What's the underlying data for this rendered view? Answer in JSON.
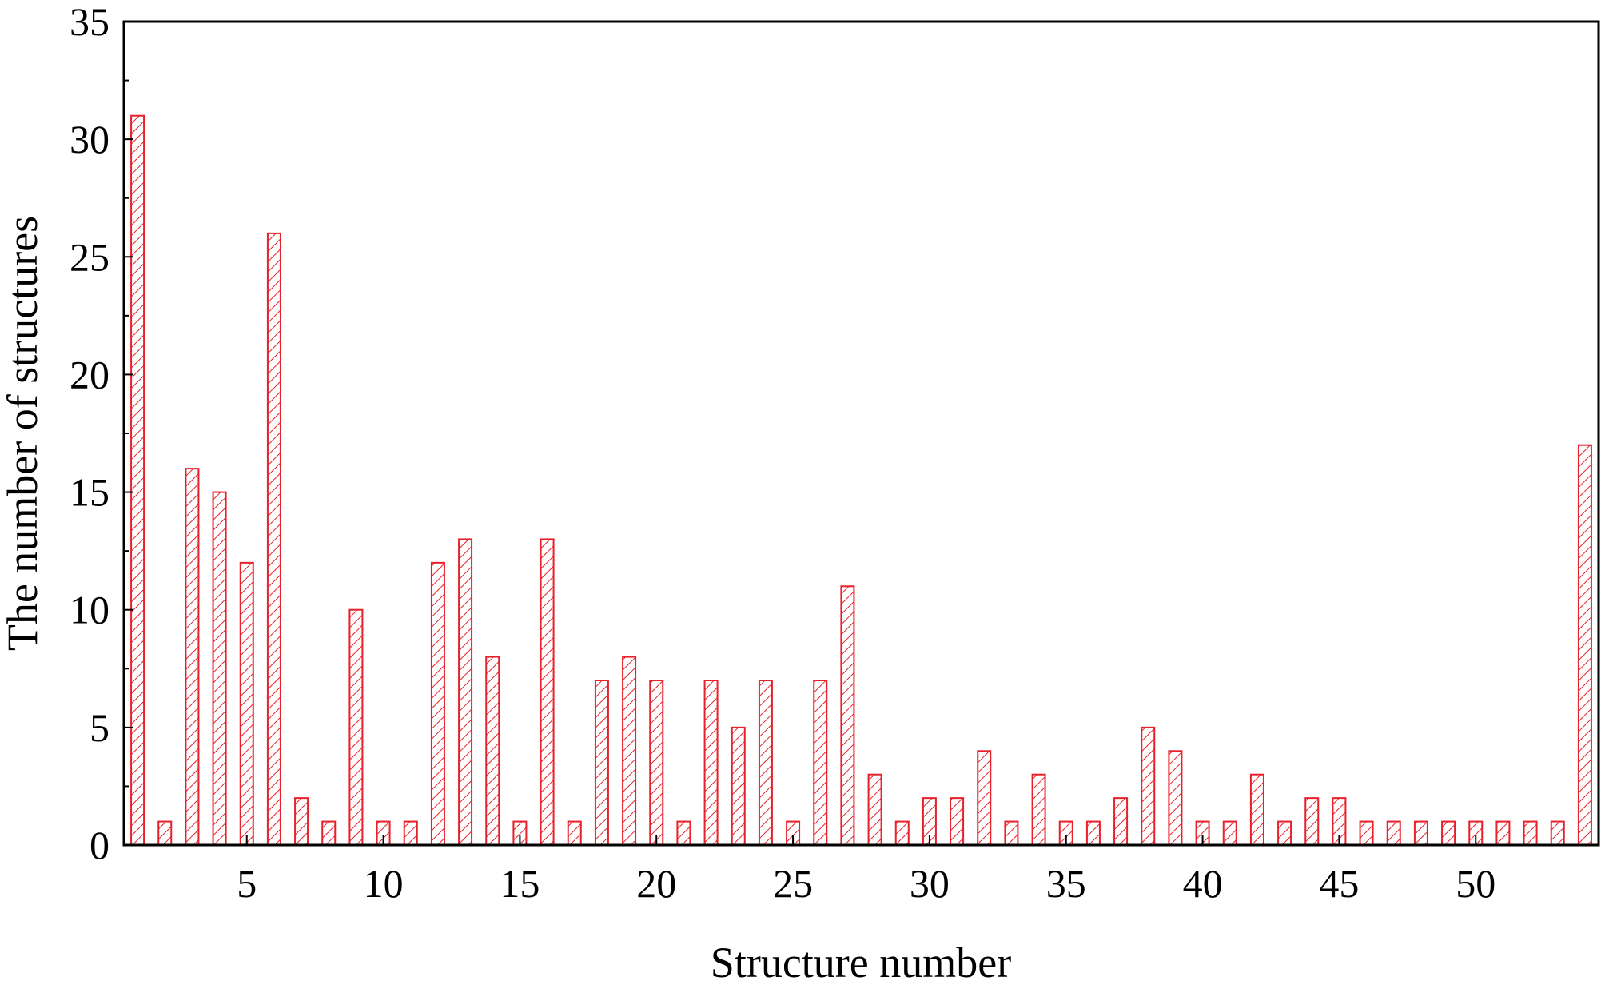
{
  "chart_data": {
    "type": "bar",
    "title": "",
    "xlabel": "Structure number",
    "ylabel": "The number of structures",
    "x": [
      1,
      2,
      3,
      4,
      5,
      6,
      7,
      8,
      9,
      10,
      11,
      12,
      13,
      14,
      15,
      16,
      17,
      18,
      19,
      20,
      21,
      22,
      23,
      24,
      25,
      26,
      27,
      28,
      29,
      30,
      31,
      32,
      33,
      34,
      35,
      36,
      37,
      38,
      39,
      40,
      41,
      42,
      43,
      44,
      45,
      46,
      47,
      48,
      49,
      50,
      51,
      52,
      53,
      54
    ],
    "values": [
      31,
      1,
      16,
      15,
      12,
      26,
      2,
      1,
      10,
      1,
      1,
      12,
      13,
      8,
      1,
      13,
      1,
      7,
      8,
      7,
      1,
      7,
      5,
      7,
      1,
      7,
      11,
      3,
      1,
      2,
      2,
      4,
      1,
      3,
      1,
      1,
      2,
      5,
      4,
      1,
      1,
      3,
      1,
      2,
      2,
      1,
      1,
      1,
      1,
      1,
      1,
      1,
      1,
      17
    ],
    "xlim": [
      0.5,
      54.5
    ],
    "ylim": [
      0,
      35
    ],
    "x_ticks": [
      5,
      10,
      15,
      20,
      25,
      30,
      35,
      40,
      45,
      50
    ],
    "y_ticks": [
      0,
      5,
      10,
      15,
      20,
      25,
      30,
      35
    ],
    "grid": false,
    "legend": false,
    "bar_color": "#e8202a",
    "bar_pattern": "diagonal-hatch"
  }
}
